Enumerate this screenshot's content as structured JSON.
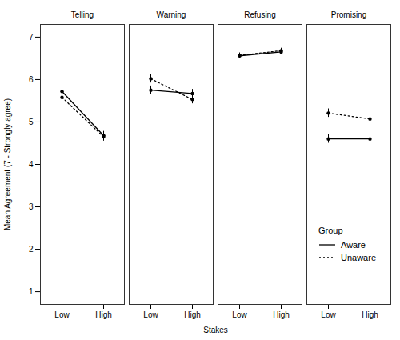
{
  "chart_data": {
    "type": "line",
    "facets": [
      "Telling",
      "Warning",
      "Refusing",
      "Promising"
    ],
    "categories": [
      "Low",
      "High"
    ],
    "x_label": "Stakes",
    "y_label": "Mean Agreement (7 - Strongly agree)",
    "ylim": [
      0.7,
      7.3
    ],
    "yticks": [
      1,
      2,
      3,
      4,
      5,
      6,
      7
    ],
    "grid": false,
    "legend": "bottom right",
    "legend_title": "Group",
    "marker": "circle",
    "series": [
      {
        "name": "Aware",
        "color": "#000000",
        "line_style": "solid",
        "values": [
          [
            5.72,
            4.68
          ],
          [
            5.75,
            5.67
          ],
          [
            6.56,
            6.65
          ],
          [
            4.6,
            4.6
          ]
        ],
        "errors": [
          [
            0.1,
            0.1
          ],
          [
            0.1,
            0.1
          ],
          [
            0.06,
            0.06
          ],
          [
            0.1,
            0.1
          ]
        ]
      },
      {
        "name": "Unaware",
        "color": "#000000",
        "line_style": "dotted",
        "values": [
          [
            5.58,
            4.65
          ],
          [
            6.02,
            5.53
          ],
          [
            6.57,
            6.68
          ],
          [
            5.21,
            5.07
          ]
        ],
        "errors": [
          [
            0.1,
            0.1
          ],
          [
            0.1,
            0.1
          ],
          [
            0.06,
            0.06
          ],
          [
            0.1,
            0.1
          ]
        ]
      }
    ]
  }
}
